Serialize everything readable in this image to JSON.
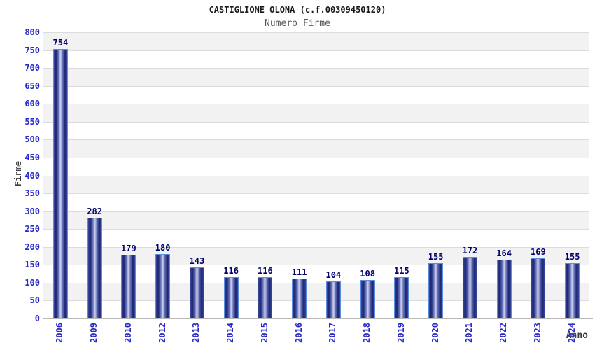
{
  "chart_data": {
    "type": "bar",
    "title": "CASTIGLIONE OLONA (c.f.00309450120)",
    "subtitle": "Numero Firme",
    "xlabel": "Anno",
    "ylabel": "Firme",
    "categories": [
      "2006",
      "2009",
      "2010",
      "2012",
      "2013",
      "2014",
      "2015",
      "2016",
      "2017",
      "2018",
      "2019",
      "2020",
      "2021",
      "2022",
      "2023",
      "2024"
    ],
    "values": [
      754,
      282,
      179,
      180,
      143,
      116,
      116,
      111,
      104,
      108,
      115,
      155,
      172,
      164,
      169,
      155
    ],
    "ylim": [
      0,
      800
    ],
    "ytick_step": 50,
    "grid": true,
    "legend": "none",
    "colors": {
      "bar_border": "#5b8ddb",
      "bar_dark": "#1a2370",
      "bar_mid": "#39479e",
      "bar_highlight": "#c2c9ea",
      "tick_label": "#2929c9",
      "value_label": "#00006b",
      "band_gray": "#f2f2f2",
      "band_white": "#ffffff",
      "gridline": "#dcdcdc",
      "axis_line": "#c4c4c4",
      "title": "#1a1a1a",
      "subtitle": "#5a5a5a",
      "axis_title": "#3c3c3c"
    }
  }
}
